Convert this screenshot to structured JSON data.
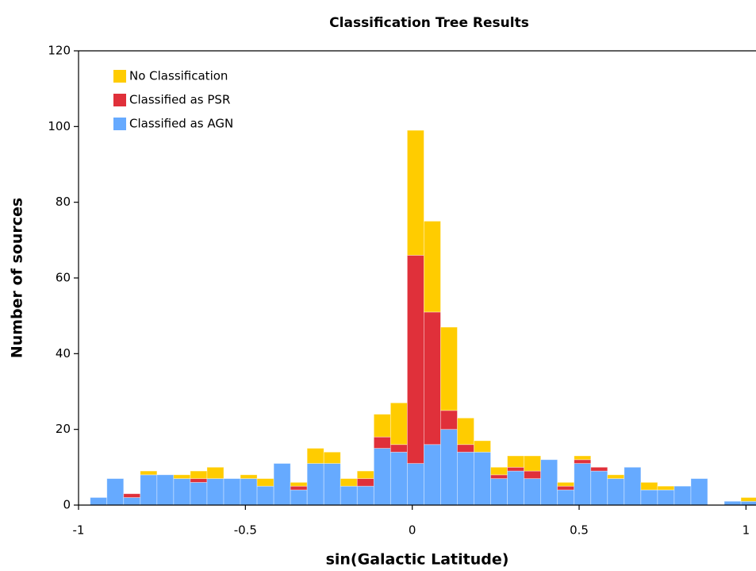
{
  "chart_data": {
    "type": "histogram",
    "title": "Classification Tree Results",
    "xlabel": "sin(Galactic Latitude)",
    "ylabel": "Number of sources",
    "bins": [
      -0.965,
      -0.915,
      -0.865,
      -0.815,
      -0.765,
      -0.715,
      -0.665,
      -0.615,
      -0.565,
      -0.515,
      -0.465,
      -0.415,
      -0.365,
      -0.315,
      -0.265,
      -0.215,
      -0.165,
      -0.115,
      -0.065,
      -0.015,
      0.035,
      0.085,
      0.135,
      0.185,
      0.235,
      0.285,
      0.335,
      0.385,
      0.435,
      0.485,
      0.535,
      0.585,
      0.635,
      0.685,
      0.735,
      0.785,
      0.835,
      0.885,
      0.935,
      0.985,
      1.035
    ],
    "series": [
      {
        "name": "No Classification",
        "color": "#ffcc00",
        "values": [
          0,
          0,
          0,
          1,
          0,
          1,
          2,
          3,
          0,
          1,
          2,
          0,
          1,
          4,
          3,
          2,
          2,
          6,
          11,
          33,
          24,
          22,
          7,
          3,
          2,
          3,
          4,
          0,
          1,
          1,
          0,
          1,
          0,
          2,
          1,
          0,
          0,
          0,
          0,
          1
        ]
      },
      {
        "name": "Classified as PSR",
        "color": "#e0303a",
        "values": [
          0,
          0,
          1,
          0,
          0,
          0,
          1,
          0,
          0,
          0,
          0,
          0,
          1,
          0,
          0,
          0,
          2,
          3,
          2,
          55,
          35,
          5,
          2,
          0,
          1,
          1,
          2,
          0,
          1,
          1,
          1,
          0,
          0,
          0,
          0,
          0,
          0,
          0,
          0,
          0
        ]
      },
      {
        "name": "Classified as AGN",
        "color": "#66aaff",
        "values": [
          2,
          7,
          2,
          8,
          8,
          7,
          6,
          7,
          7,
          7,
          5,
          11,
          4,
          11,
          11,
          5,
          5,
          15,
          14,
          11,
          16,
          20,
          14,
          14,
          7,
          9,
          7,
          12,
          4,
          11,
          9,
          7,
          10,
          4,
          4,
          5,
          7,
          0,
          1,
          1
        ]
      }
    ],
    "stacked": true,
    "xlim": [
      -1,
      1.03
    ],
    "xticks": [
      -1,
      -0.5,
      0,
      0.5,
      1
    ],
    "ylim": [
      0,
      120
    ],
    "yticks": [
      0,
      20,
      40,
      60,
      80,
      100,
      120
    ],
    "legend": "upper left"
  }
}
